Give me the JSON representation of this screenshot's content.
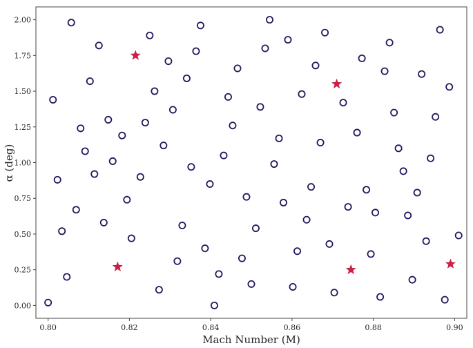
{
  "chart_data": {
    "type": "scatter",
    "xlabel": "Mach Number (M)",
    "ylabel": "α (deg)",
    "xlim": [
      0.797,
      0.903
    ],
    "ylim": [
      -0.09,
      2.09
    ],
    "xticks": [
      0.8,
      0.82,
      0.84,
      0.86,
      0.88,
      0.9
    ],
    "xtick_labels": [
      "0.80",
      "0.82",
      "0.84",
      "0.86",
      "0.88",
      "0.90"
    ],
    "yticks": [
      0.0,
      0.25,
      0.5,
      0.75,
      1.0,
      1.25,
      1.5,
      1.75,
      2.0
    ],
    "ytick_labels": [
      "0.00",
      "0.25",
      "0.50",
      "0.75",
      "1.00",
      "1.25",
      "1.50",
      "1.75",
      "2.00"
    ],
    "grid": false,
    "legend": "none",
    "series": [
      {
        "marker": "circle-open",
        "color": "#1f1a5e",
        "points": [
          [
            0.8,
            0.02
          ],
          [
            0.8057,
            1.98
          ],
          [
            0.8012,
            1.44
          ],
          [
            0.8023,
            0.88
          ],
          [
            0.8034,
            0.52
          ],
          [
            0.8046,
            0.2
          ],
          [
            0.8069,
            0.67
          ],
          [
            0.808,
            1.24
          ],
          [
            0.8091,
            1.08
          ],
          [
            0.8103,
            1.57
          ],
          [
            0.8114,
            0.92
          ],
          [
            0.8125,
            1.82
          ],
          [
            0.8137,
            0.58
          ],
          [
            0.8148,
            1.3
          ],
          [
            0.8159,
            1.01
          ],
          [
            0.8182,
            1.19
          ],
          [
            0.8194,
            0.74
          ],
          [
            0.8205,
            0.47
          ],
          [
            0.8227,
            0.9
          ],
          [
            0.8239,
            1.28
          ],
          [
            0.825,
            1.89
          ],
          [
            0.8262,
            1.5
          ],
          [
            0.8273,
            0.11
          ],
          [
            0.8284,
            1.12
          ],
          [
            0.8296,
            1.71
          ],
          [
            0.8307,
            1.37
          ],
          [
            0.8318,
            0.31
          ],
          [
            0.833,
            0.56
          ],
          [
            0.8341,
            1.59
          ],
          [
            0.8352,
            0.97
          ],
          [
            0.8364,
            1.78
          ],
          [
            0.8375,
            1.96
          ],
          [
            0.8386,
            0.4
          ],
          [
            0.8398,
            0.85
          ],
          [
            0.8409,
            0.0
          ],
          [
            0.842,
            0.22
          ],
          [
            0.8432,
            1.05
          ],
          [
            0.8443,
            1.46
          ],
          [
            0.8454,
            1.26
          ],
          [
            0.8466,
            1.66
          ],
          [
            0.8477,
            0.33
          ],
          [
            0.8488,
            0.76
          ],
          [
            0.85,
            0.15
          ],
          [
            0.8511,
            0.54
          ],
          [
            0.8522,
            1.39
          ],
          [
            0.8534,
            1.8
          ],
          [
            0.8545,
            2.0
          ],
          [
            0.8556,
            0.99
          ],
          [
            0.8568,
            1.17
          ],
          [
            0.8579,
            0.72
          ],
          [
            0.859,
            1.86
          ],
          [
            0.8602,
            0.13
          ],
          [
            0.8613,
            0.38
          ],
          [
            0.8624,
            1.48
          ],
          [
            0.8636,
            0.6
          ],
          [
            0.8647,
            0.83
          ],
          [
            0.8658,
            1.68
          ],
          [
            0.867,
            1.14
          ],
          [
            0.8681,
            1.91
          ],
          [
            0.8692,
            0.43
          ],
          [
            0.8704,
            0.09
          ],
          [
            0.8726,
            1.42
          ],
          [
            0.8738,
            0.69
          ],
          [
            0.876,
            1.21
          ],
          [
            0.8772,
            1.73
          ],
          [
            0.8783,
            0.81
          ],
          [
            0.8794,
            0.36
          ],
          [
            0.8805,
            0.65
          ],
          [
            0.8817,
            0.06
          ],
          [
            0.8828,
            1.64
          ],
          [
            0.884,
            1.84
          ],
          [
            0.8851,
            1.35
          ],
          [
            0.8862,
            1.1
          ],
          [
            0.8874,
            0.94
          ],
          [
            0.8885,
            0.63
          ],
          [
            0.8896,
            0.18
          ],
          [
            0.8908,
            0.79
          ],
          [
            0.8919,
            1.62
          ],
          [
            0.893,
            0.45
          ],
          [
            0.8941,
            1.03
          ],
          [
            0.8953,
            1.32
          ],
          [
            0.8964,
            1.93
          ],
          [
            0.8976,
            0.04
          ],
          [
            0.8987,
            1.53
          ],
          [
            0.901,
            0.49
          ]
        ]
      },
      {
        "marker": "star",
        "color": "#cc1f45",
        "points": [
          [
            0.8215,
            1.75
          ],
          [
            0.8171,
            0.27
          ],
          [
            0.871,
            1.55
          ],
          [
            0.8745,
            0.25
          ],
          [
            0.899,
            0.29
          ]
        ]
      }
    ]
  }
}
